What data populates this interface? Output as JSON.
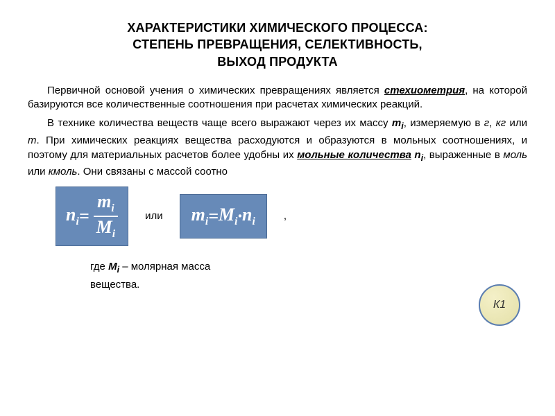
{
  "title": {
    "line1": "ХАРАКТЕРИСТИКИ ХИМИЧЕСКОГО ПРОЦЕССА:",
    "line2": "СТЕПЕНЬ ПРЕВРАЩЕНИЯ, СЕЛЕКТИВНОСТЬ,",
    "line3": "ВЫХОД ПРОДУКТА"
  },
  "para1": {
    "t1": "Первичной основой учения о химических превращениях является ",
    "term": "стехиометрия",
    "t2": ", на которой базируются все количественные соотношения при расчетах химических реакций."
  },
  "para2": {
    "t1": "В технике количества веществ чаще всего выражают через их массу ",
    "mi": "m",
    "misub": "i",
    "t2": ", измеряемую в ",
    "units1a": "г",
    "comma1": ", ",
    "units1b": "кг",
    "or1": " или ",
    "units1c": "т",
    "t3": ". При химических реакциях вещества расходуются и образуются в мольных соотношениях, и поэтому для материальных расчетов более удобны их ",
    "term2": "мольные количества",
    "tspace": " ",
    "ni": "n",
    "nisub": "i",
    "t4": ", выраженные в ",
    "units2a": "моль",
    "or2": " или ",
    "units2b": "кмоль",
    "t5": ". Они связаны с массой соотно"
  },
  "formula1": {
    "lhs_n": "n",
    "lhs_i": "i",
    "eq": " = ",
    "num_m": "m",
    "num_i": "i",
    "den_M": "M",
    "den_i": "i"
  },
  "connector_or": "или",
  "formula2": {
    "lhs_m": "m",
    "lhs_i": "i",
    "eq": " = ",
    "M": "M",
    "M_i": "i",
    "dot": " · ",
    "n": "n",
    "n_i": "i"
  },
  "trail_comma": ",",
  "circle_label": "К1",
  "legend": {
    "where": "где  ",
    "Mi": "M",
    "Mi_sub": "i",
    "dash": "  –  молярная  масса",
    "line2": "вещества."
  },
  "colors": {
    "formula_bg": "#678ab8",
    "formula_text": "#ffffff",
    "circle_fill_light": "#f4f0c8",
    "circle_fill_dark": "#e4e0a8",
    "circle_border": "#5a7db0",
    "page_bg": "#ffffff",
    "text": "#000000"
  }
}
